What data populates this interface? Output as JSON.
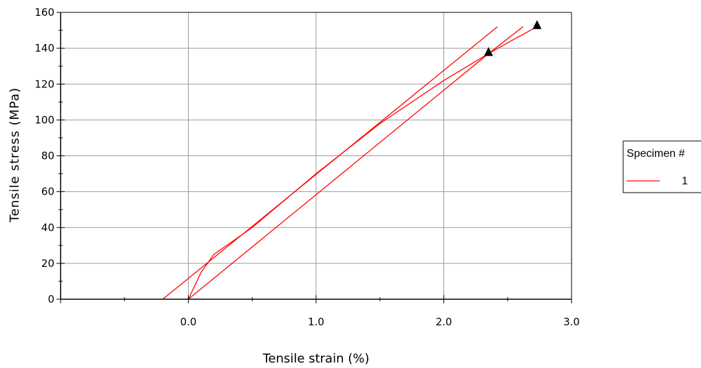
{
  "chart_data": {
    "type": "line",
    "title": "",
    "xlabel": "Tensile strain (%)",
    "ylabel": "Tensile stress (MPa)",
    "xlim": [
      -1.0,
      3.0
    ],
    "ylim": [
      0,
      160
    ],
    "xticks": [
      0.0,
      1.0,
      2.0,
      3.0
    ],
    "xtick_labels": [
      "0.0",
      "1.0",
      "2.0",
      "3.0"
    ],
    "yticks": [
      0,
      20,
      40,
      60,
      80,
      100,
      120,
      140,
      160
    ],
    "ytick_labels": [
      "0",
      "20",
      "40",
      "60",
      "80",
      "100",
      "120",
      "140",
      "160"
    ],
    "grid": true,
    "legend": {
      "title": "Specimen #",
      "placement": "right",
      "entries": [
        "1"
      ]
    },
    "series": [
      {
        "name": "1",
        "color": "#ff0000",
        "segments": [
          [
            [
              0.0,
              0
            ],
            [
              0.1,
              15
            ],
            [
              0.2,
              25
            ],
            [
              0.5,
              40
            ],
            [
              1.0,
              70
            ],
            [
              1.5,
              98
            ],
            [
              2.0,
              122
            ],
            [
              2.35,
              137
            ]
          ],
          [
            [
              0.0,
              0
            ],
            [
              2.35,
              137
            ]
          ],
          [
            [
              2.35,
              137
            ],
            [
              2.55,
              145
            ],
            [
              2.73,
              152
            ]
          ],
          [
            [
              -0.2,
              0
            ],
            [
              2.42,
              152
            ]
          ],
          [
            [
              2.35,
              137
            ],
            [
              2.62,
              152
            ]
          ]
        ],
        "markers": [
          [
            2.35,
            138
          ],
          [
            2.73,
            153
          ]
        ]
      }
    ]
  }
}
